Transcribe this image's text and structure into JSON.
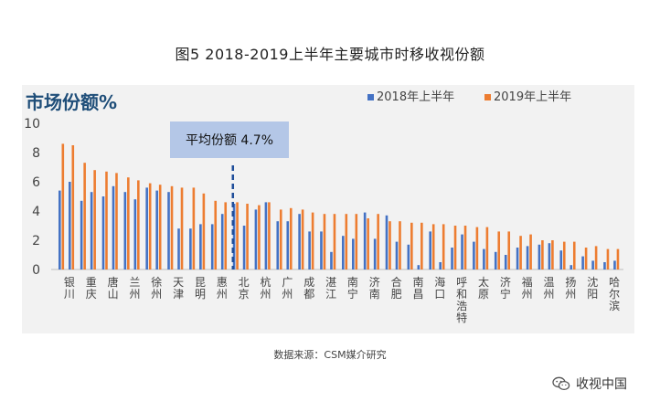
{
  "figure_title": "图5 2018-2019上半年主要城市时移收视份额",
  "source_text": "数据来源：CSM媒介研究",
  "watermark_text": "收视中国",
  "colors": {
    "series_2018": "#4472C4",
    "series_2019": "#ED7D31",
    "avg_box": "#B4C7E7",
    "avg_line": "#1F4E9A",
    "panel_bg": "#F2F2F2",
    "ylabel": "#1F4E79"
  },
  "chart_data": {
    "type": "bar",
    "title": "",
    "ylabel": "市场份额%",
    "xlabel": "",
    "ylim": [
      0,
      10
    ],
    "yticks": [
      0,
      2,
      4,
      6,
      8,
      10
    ],
    "grid": false,
    "legend_position": "top-right",
    "categories": [
      "银川",
      "重庆",
      "唐山",
      "兰州",
      "徐州",
      "天津",
      "昆明",
      "惠州",
      "北京",
      "杭州",
      "广州",
      "成都",
      "湛江",
      "南宁",
      "济南",
      "合肥",
      "南昌",
      "海口",
      "呼和浩特",
      "太原",
      "济宁",
      "福州",
      "温州",
      "扬州",
      "沈阳",
      "哈尔滨"
    ],
    "series": [
      {
        "name": "2018年上半年",
        "values": [
          5.4,
          4.7,
          5.0,
          5.3,
          5.6,
          5.3,
          2.8,
          3.1,
          4.5,
          4.1,
          3.3,
          3.8,
          2.6,
          2.3,
          3.9,
          3.7,
          1.7,
          2.6,
          1.5,
          1.9,
          1.2,
          1.5,
          1.7,
          1.3,
          0.9,
          0.5
        ]
      },
      {
        "name": "2019年上半年",
        "values": [
          8.6,
          7.3,
          6.7,
          6.3,
          5.9,
          5.7,
          5.6,
          4.7,
          4.6,
          4.4,
          4.1,
          4.1,
          3.8,
          3.8,
          3.5,
          3.3,
          3.2,
          3.1,
          3.0,
          2.9,
          2.6,
          2.3,
          2.0,
          1.9,
          1.5,
          1.4
        ]
      }
    ],
    "partner_values_2018": [
      6.0,
      5.3,
      5.7,
      4.8,
      5.4,
      2.8,
      3.1,
      3.8,
      3.0,
      4.6,
      3.3,
      2.6,
      1.2,
      2.1,
      2.1,
      1.9,
      0.3,
      0.5,
      2.4,
      1.4,
      1.0,
      1.6,
      1.8,
      0.3,
      0.6,
      0.6
    ],
    "partner_values_2019": [
      8.5,
      6.8,
      6.6,
      6.1,
      5.8,
      5.6,
      5.2,
      4.6,
      4.5,
      4.6,
      4.2,
      3.9,
      3.8,
      3.8,
      3.8,
      3.3,
      3.2,
      3.1,
      3.0,
      2.9,
      2.6,
      2.4,
      2.0,
      1.9,
      1.6,
      1.4
    ],
    "partner_categories": [
      "",
      "",
      "",
      "",
      "",
      "",
      "",
      "",
      "",
      "",
      "",
      "",
      "",
      "",
      "",
      "",
      "",
      "",
      "",
      "",
      "",
      "",
      "",
      "",
      "",
      ""
    ],
    "average": {
      "label": "平均份额 4.7%",
      "value": 4.7
    }
  }
}
